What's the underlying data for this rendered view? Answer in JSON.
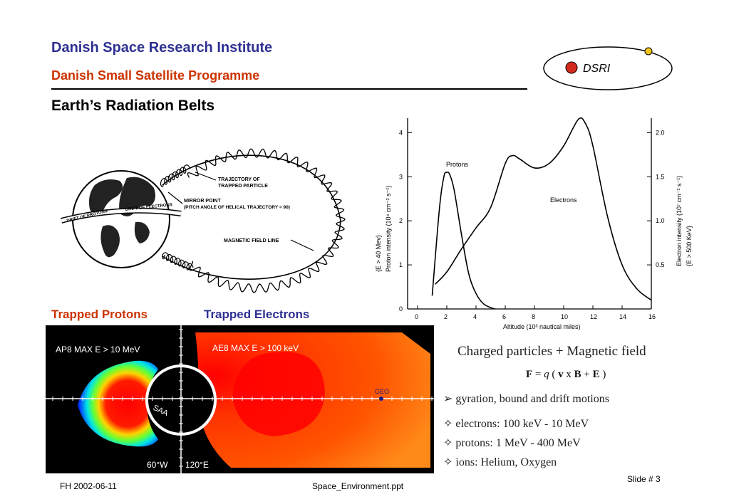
{
  "header": {
    "institute": "Danish Space Research Institute",
    "programme": "Danish Small Satellite Programme",
    "slide_title": "Earth’s Radiation Belts"
  },
  "logo": {
    "text": "DSRI"
  },
  "diagram": {
    "labels": {
      "trajectory": [
        "TRAJECTORY OF",
        "TRAPPED PARTICLE"
      ],
      "mirror": [
        "MIRROR POINT",
        "(PITCH ANGLE OF HELICAL TRAJECTORY = 90)"
      ],
      "field_line": "MAGNETIC FIELD LINE",
      "drift_protons": "DRIFT OF PROTONS",
      "drift_electrons": "DRIFT OF ELECTRONS"
    }
  },
  "chart_data": {
    "type": "line",
    "xlabel": "Altitude (10³ nautical miles)",
    "x_ticks": [
      "0",
      "2",
      "4",
      "6",
      "8",
      "10",
      "12",
      "14",
      "16"
    ],
    "ylabel_left": [
      "{E > 40 Mev}",
      "Proton intensity (10⁴ cm⁻² s⁻¹)"
    ],
    "ylabel_right": [
      "Electron intensity (10⁷ cm⁻² s⁻¹)",
      "{E > 500 KeV}"
    ],
    "y_left_ticks": [
      "0",
      "1",
      "2",
      "3",
      "4"
    ],
    "y_right_ticks": [
      "0.5",
      "1.0",
      "1.5",
      "2.0"
    ],
    "ylim_left": [
      0,
      4.2
    ],
    "ylim_right": [
      0,
      2.1
    ],
    "xlim": [
      0,
      16
    ],
    "series": [
      {
        "name": "Protons",
        "axis": "left",
        "x": [
          1,
          1.5,
          1.8,
          2.0,
          2.2,
          2.5,
          3.0,
          3.5,
          4.0,
          4.5,
          5.0,
          5.3
        ],
        "y": [
          0.3,
          2.3,
          3.0,
          3.1,
          3.05,
          2.7,
          1.7,
          0.8,
          0.35,
          0.12,
          0.03,
          0.0
        ]
      },
      {
        "name": "Electrons",
        "axis": "right",
        "x": [
          1.2,
          2,
          3,
          4,
          5,
          6,
          6.5,
          7,
          8,
          9,
          10,
          11,
          11.5,
          12,
          13,
          14,
          15,
          16
        ],
        "y": [
          0.28,
          0.42,
          0.68,
          0.92,
          1.15,
          1.65,
          1.74,
          1.7,
          1.6,
          1.65,
          1.85,
          2.15,
          2.1,
          1.85,
          1.05,
          0.5,
          0.23,
          0.1
        ]
      }
    ]
  },
  "belt_images": {
    "protons_label": "Trapped Protons",
    "electrons_label": "Trapped Electrons",
    "protons_caption": "AP8 MAX  E > 10 MeV",
    "electrons_caption": "AE8 MAX  E > 100 keV",
    "geo": "GEO",
    "saa": "SAA",
    "lon_left": "60°W",
    "lon_right": "120°E"
  },
  "physics": {
    "title": "Charged particles + Magnetic field",
    "formula": "F = q ( v x B + E )",
    "bullets": [
      "➢ gyration, bound and drift motions",
      "✧ electrons: 100 keV - 10 MeV",
      "✧ protons: 1 MeV - 400 MeV",
      "✧ ions: Helium, Oxygen"
    ]
  },
  "footer": {
    "left": "FH  2002-06-11",
    "center": "Space_Environment.ppt",
    "right": "Slide # 3"
  },
  "colors": {
    "institute_blue": "#2e3192",
    "programme_red": "#cc3300",
    "logo_dot": "#d42a1e",
    "logo_sat": "#f5c518"
  }
}
